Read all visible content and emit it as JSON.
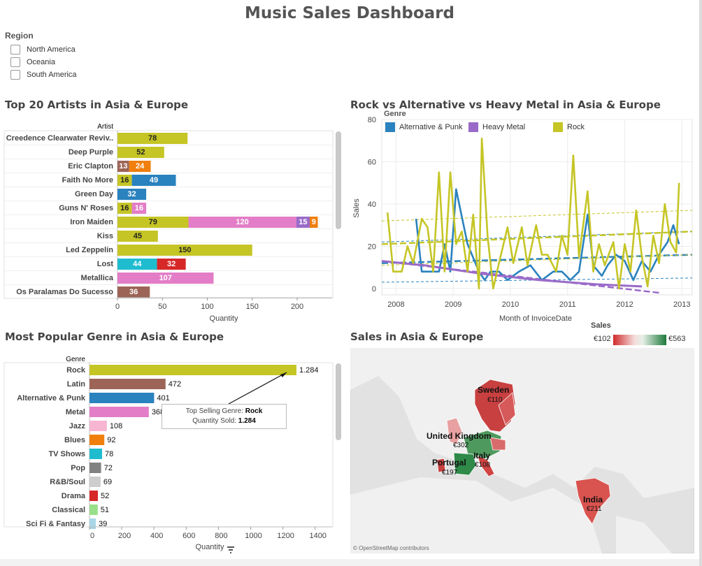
{
  "dashboard": {
    "title": "Music Sales Dashboard"
  },
  "filters": {
    "title": "Region",
    "options": [
      {
        "label": "North  America",
        "checked": false
      },
      {
        "label": "Oceania",
        "checked": false
      },
      {
        "label": "South America",
        "checked": false
      }
    ]
  },
  "colors": {
    "rock": "#c5c526",
    "latin": "#9c6456",
    "alternative": "#2a82be",
    "metal": "#e37dc7",
    "jazz": "#f6b6d2",
    "blues": "#f07f0e",
    "tv_shows": "#1fbcd0",
    "pop": "#818181",
    "rnb": "#cdcdcd",
    "drama": "#d72828",
    "classical": "#98df8a",
    "scifi": "#a8d7e8",
    "heavy_metal": "#9a6ac8"
  },
  "panels": {
    "artists_title": "Top 20 Artists in Asia & Europe",
    "line_title": "Rock vs Alternative vs Heavy Metal in Asia & Europe",
    "genre_title": "Most Popular Genre in Asia & Europe",
    "map_title": "Sales in Asia & Europe"
  },
  "tooltip": {
    "line1_prefix": "Top Selling Genre:",
    "line1_value": "Rock",
    "line2_prefix": "Quantity Sold:",
    "line2_value": "1.284"
  },
  "map": {
    "legend_title": "Sales",
    "legend_min": "€102",
    "legend_max": "€563",
    "credit": "© OpenStreetMap contributors"
  },
  "chart_data": [
    {
      "type": "bar",
      "orientation": "horizontal",
      "stacked": true,
      "title": "Top 20 Artists in Asia & Europe",
      "ylabel": "Artist",
      "xlabel": "Quantity",
      "xlim": [
        0,
        230
      ],
      "xticks": [
        0,
        50,
        100,
        150,
        200
      ],
      "categories": [
        "Creedence Clearwater Reviv..",
        "Deep Purple",
        "Eric Clapton",
        "Faith No More",
        "Green Day",
        "Guns N' Roses",
        "Iron Maiden",
        "Kiss",
        "Led Zeppelin",
        "Lost",
        "Metallica",
        "Os Paralamas Do Sucesso"
      ],
      "rows": [
        [
          {
            "genre": "Rock",
            "value": 78
          }
        ],
        [
          {
            "genre": "Rock",
            "value": 52
          }
        ],
        [
          {
            "genre": "Latin",
            "value": 13
          },
          {
            "genre": "Blues",
            "value": 24
          }
        ],
        [
          {
            "genre": "Rock",
            "value": 16
          },
          {
            "genre": "Alternative & Punk",
            "value": 49
          }
        ],
        [
          {
            "genre": "Alternative & Punk",
            "value": 32
          }
        ],
        [
          {
            "genre": "Rock",
            "value": 16
          },
          {
            "genre": "Metal",
            "value": 16
          }
        ],
        [
          {
            "genre": "Rock",
            "value": 79
          },
          {
            "genre": "Metal",
            "value": 120
          },
          {
            "genre": "Heavy Metal",
            "value": 15
          },
          {
            "genre": "Blues",
            "value": 9
          }
        ],
        [
          {
            "genre": "Rock",
            "value": 45
          }
        ],
        [
          {
            "genre": "Rock",
            "value": 150
          }
        ],
        [
          {
            "genre": "TV Shows",
            "value": 44
          },
          {
            "genre": "Drama",
            "value": 32
          }
        ],
        [
          {
            "genre": "Metal",
            "value": 107
          }
        ],
        [
          {
            "genre": "Latin",
            "value": 36
          }
        ]
      ]
    },
    {
      "type": "line",
      "title": "Rock vs Alternative vs Heavy Metal in Asia & Europe",
      "xlabel": "Month of InvoiceDate",
      "ylabel": "Sales",
      "legend_title": "Genre",
      "legend_position": "top-left",
      "xlim": [
        2007.75,
        2013.18
      ],
      "ylim": [
        -3,
        80
      ],
      "xticks": [
        2008,
        2009,
        2010,
        2011,
        2012,
        2013
      ],
      "yticks": [
        0,
        20,
        40,
        60,
        80
      ],
      "grid": true,
      "series": [
        {
          "name": "Alternative & Punk",
          "color": "#2a82be",
          "points": [
            [
              2008.35,
              33
            ],
            [
              2008.45,
              8
            ],
            [
              2008.55,
              8
            ],
            [
              2008.75,
              8
            ],
            [
              2008.85,
              21
            ],
            [
              2008.95,
              8
            ],
            [
              2009.05,
              47
            ],
            [
              2009.25,
              21
            ],
            [
              2009.45,
              8
            ],
            [
              2009.55,
              4
            ],
            [
              2009.65,
              8
            ],
            [
              2009.8,
              8
            ],
            [
              2009.95,
              4
            ],
            [
              2010.15,
              8
            ],
            [
              2010.35,
              11
            ],
            [
              2010.55,
              4
            ],
            [
              2010.75,
              8
            ],
            [
              2010.9,
              8
            ],
            [
              2011.05,
              4
            ],
            [
              2011.2,
              8
            ],
            [
              2011.35,
              35
            ],
            [
              2011.45,
              11
            ],
            [
              2011.6,
              6
            ],
            [
              2011.7,
              11
            ],
            [
              2011.85,
              16
            ],
            [
              2012.0,
              13
            ],
            [
              2012.15,
              4
            ],
            [
              2012.3,
              13
            ],
            [
              2012.45,
              8
            ],
            [
              2012.6,
              16
            ],
            [
              2012.75,
              22
            ],
            [
              2012.85,
              30
            ],
            [
              2012.95,
              21
            ]
          ]
        },
        {
          "name": "Heavy Metal",
          "color": "#9a6ac8",
          "points": [
            [
              2007.75,
              13
            ],
            [
              2008.5,
              11
            ],
            [
              2009.5,
              7
            ],
            [
              2010.5,
              4
            ],
            [
              2011.5,
              2
            ],
            [
              2012.3,
              1
            ]
          ]
        },
        {
          "name": "Rock",
          "color": "#c5c526",
          "points": [
            [
              2007.85,
              36
            ],
            [
              2007.95,
              8
            ],
            [
              2008.1,
              8
            ],
            [
              2008.2,
              20
            ],
            [
              2008.3,
              12
            ],
            [
              2008.45,
              33
            ],
            [
              2008.55,
              29
            ],
            [
              2008.65,
              8
            ],
            [
              2008.75,
              55
            ],
            [
              2008.85,
              8
            ],
            [
              2008.95,
              55
            ],
            [
              2009.05,
              21
            ],
            [
              2009.15,
              27
            ],
            [
              2009.25,
              8
            ],
            [
              2009.35,
              35
            ],
            [
              2009.45,
              0
            ],
            [
              2009.5,
              71
            ],
            [
              2009.6,
              25
            ],
            [
              2009.7,
              0
            ],
            [
              2009.8,
              12
            ],
            [
              2009.95,
              29
            ],
            [
              2010.05,
              12
            ],
            [
              2010.2,
              29
            ],
            [
              2010.3,
              11
            ],
            [
              2010.45,
              30
            ],
            [
              2010.55,
              16
            ],
            [
              2010.65,
              16
            ],
            [
              2010.8,
              8
            ],
            [
              2010.9,
              25
            ],
            [
              2011.0,
              16
            ],
            [
              2011.1,
              63
            ],
            [
              2011.2,
              15
            ],
            [
              2011.35,
              46
            ],
            [
              2011.45,
              8
            ],
            [
              2011.55,
              21
            ],
            [
              2011.65,
              11
            ],
            [
              2011.8,
              22
            ],
            [
              2011.9,
              0
            ],
            [
              2012.0,
              21
            ],
            [
              2012.1,
              8
            ],
            [
              2012.2,
              37
            ],
            [
              2012.3,
              15
            ],
            [
              2012.4,
              1
            ],
            [
              2012.5,
              25
            ],
            [
              2012.6,
              12
            ],
            [
              2012.7,
              40
            ],
            [
              2012.8,
              22
            ],
            [
              2012.9,
              17
            ],
            [
              2012.95,
              50
            ]
          ]
        }
      ],
      "trend_lines": [
        {
          "series": "Alternative & Punk",
          "start": [
            2007.75,
            12
          ],
          "end": [
            2013.18,
            16
          ]
        },
        {
          "series": "Alternative & Punk",
          "start": [
            2007.75,
            22
          ],
          "end": [
            2013.18,
            27
          ]
        },
        {
          "series": "Alternative & Punk",
          "start": [
            2007.75,
            3
          ],
          "end": [
            2013.18,
            5
          ]
        },
        {
          "series": "Rock",
          "start": [
            2007.75,
            21
          ],
          "end": [
            2013.18,
            27
          ]
        },
        {
          "series": "Rock",
          "start": [
            2007.75,
            32
          ],
          "end": [
            2013.18,
            37
          ]
        },
        {
          "series": "Rock",
          "start": [
            2007.75,
            11
          ],
          "end": [
            2013.18,
            16
          ]
        },
        {
          "series": "Heavy Metal",
          "start": [
            2007.75,
            13
          ],
          "end": [
            2012.6,
            -2
          ]
        }
      ]
    },
    {
      "type": "bar",
      "orientation": "horizontal",
      "title": "Most Popular Genre in Asia & Europe",
      "ylabel": "Genre",
      "xlabel": "Quantity",
      "xlim": [
        0,
        1480
      ],
      "xticks": [
        0,
        200,
        400,
        600,
        800,
        1000,
        1200,
        1400
      ],
      "categories": [
        "Rock",
        "Latin",
        "Alternative & Punk",
        "Metal",
        "Jazz",
        "Blues",
        "TV Shows",
        "Pop",
        "R&B/Soul",
        "Drama",
        "Classical",
        "Sci Fi & Fantasy"
      ],
      "values": [
        1284,
        472,
        401,
        368,
        108,
        92,
        78,
        72,
        69,
        52,
        51,
        39
      ],
      "labels": [
        "1.284",
        "472",
        "401",
        "368",
        "108",
        "92",
        "78",
        "72",
        "69",
        "52",
        "51",
        "39"
      ]
    },
    {
      "type": "map",
      "title": "Sales in Asia & Europe",
      "legend_title": "Sales",
      "color_range": [
        "€102",
        "€563"
      ],
      "labels": [
        {
          "country": "Sweden",
          "value": "€110"
        },
        {
          "country": "United Kingdom",
          "value": "€302"
        },
        {
          "country": "Italy",
          "value": "€108"
        },
        {
          "country": "Portugal",
          "value": "€197"
        },
        {
          "country": "India",
          "value": "€211"
        }
      ]
    }
  ]
}
